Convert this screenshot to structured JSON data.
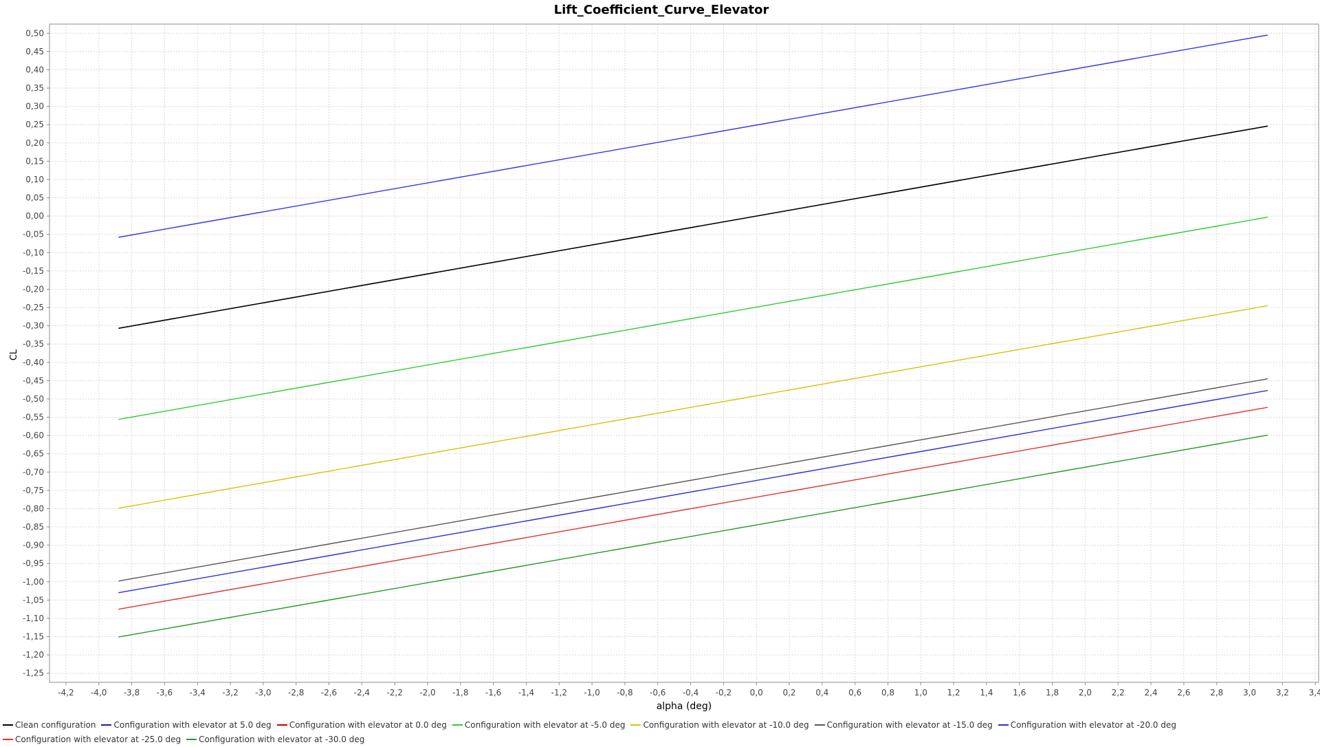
{
  "chart_data": {
    "type": "line",
    "title": "Lift_Coefficient_Curve_Elevator",
    "xlabel": "alpha (deg)",
    "ylabel": "CL",
    "xlim": [
      -4.3,
      3.42
    ],
    "ylim": [
      -1.275,
      0.525
    ],
    "x_ticks": [
      -4.2,
      -4.0,
      -3.8,
      -3.6,
      -3.4,
      -3.2,
      -3.0,
      -2.8,
      -2.6,
      -2.4,
      -2.2,
      -2.0,
      -1.8,
      -1.6,
      -1.4,
      -1.2,
      -1.0,
      -0.8,
      -0.6,
      -0.4,
      -0.2,
      0.0,
      0.2,
      0.4,
      0.6,
      0.8,
      1.0,
      1.2,
      1.4,
      1.6,
      1.8,
      2.0,
      2.2,
      2.4,
      2.6,
      2.8,
      3.0,
      3.2,
      3.4
    ],
    "y_ticks": [
      0.5,
      0.45,
      0.4,
      0.35,
      0.3,
      0.25,
      0.2,
      0.15,
      0.1,
      0.05,
      0.0,
      -0.05,
      -0.1,
      -0.15,
      -0.2,
      -0.25,
      -0.3,
      -0.35,
      -0.4,
      -0.45,
      -0.5,
      -0.55,
      -0.6,
      -0.65,
      -0.7,
      -0.75,
      -0.8,
      -0.85,
      -0.9,
      -0.95,
      -1.0,
      -1.05,
      -1.1,
      -1.15,
      -1.2,
      -1.25
    ],
    "grid": true,
    "legend_position": "bottom",
    "series": [
      {
        "name": "Clean configuration",
        "color": "#000000",
        "x": [
          -3.88,
          3.11
        ],
        "y": [
          -0.307,
          0.246
        ]
      },
      {
        "name": "Configuration with elevator at 5.0 deg",
        "color": "#1a1aa8",
        "x": [
          -3.88,
          3.11
        ],
        "y": [
          -0.307,
          0.246
        ]
      },
      {
        "name": "Configuration with elevator at 0.0 deg",
        "color": "#c00000",
        "x": [
          -3.88,
          3.11
        ],
        "y": [
          -0.307,
          0.246
        ]
      },
      {
        "name": "Configuration with elevator at -5.0 deg",
        "color": "#2ecc2e",
        "x": [
          -3.88,
          3.11
        ],
        "y": [
          -0.556,
          -0.003
        ]
      },
      {
        "name": "Configuration with elevator at -10.0 deg",
        "color": "#d6c20a",
        "x": [
          -3.88,
          3.11
        ],
        "y": [
          -0.799,
          -0.245
        ]
      },
      {
        "name": "Configuration with elevator at -15.0 deg",
        "color": "#555555",
        "x": [
          -3.88,
          3.11
        ],
        "y": [
          -0.998,
          -0.445
        ]
      },
      {
        "name": "Configuration with elevator at -20.0 deg",
        "color": "#2b2bdd",
        "x": [
          -3.88,
          3.11
        ],
        "y": [
          -1.03,
          -0.477
        ]
      },
      {
        "name": "Configuration with elevator at -25.0 deg",
        "color": "#dd3333",
        "x": [
          -3.88,
          3.11
        ],
        "y": [
          -1.075,
          -0.523
        ]
      },
      {
        "name": "Configuration with elevator at -30.0 deg",
        "color": "#229922",
        "x": [
          -3.88,
          3.11
        ],
        "y": [
          -1.151,
          -0.599
        ]
      },
      {
        "name": "",
        "color": "#3333ee",
        "x": [
          -3.88,
          3.11
        ],
        "y": [
          -0.058,
          0.495
        ]
      }
    ]
  }
}
